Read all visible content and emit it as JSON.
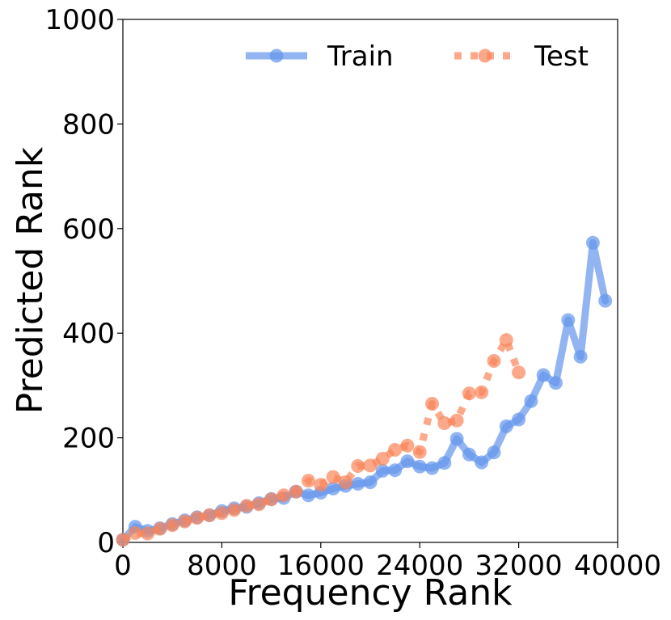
{
  "chart_data": {
    "type": "line",
    "title": "",
    "xlabel": "Frequency Rank",
    "ylabel": "Predicted Rank",
    "xlim": [
      0,
      40000
    ],
    "ylim": [
      0,
      1000
    ],
    "xticks": [
      0,
      8000,
      16000,
      24000,
      32000,
      40000
    ],
    "yticks": [
      0,
      200,
      400,
      600,
      800,
      1000
    ],
    "xtick_labels": [
      "0",
      "8000",
      "16000",
      "24000",
      "32000",
      "40000"
    ],
    "ytick_labels": [
      "0",
      "200",
      "400",
      "600",
      "800",
      "1000"
    ],
    "grid": false,
    "legend_position": "top-right",
    "series": [
      {
        "name": "Train",
        "color": "#6495ED",
        "line_style": "solid",
        "marker": "circle",
        "x": [
          0,
          1000,
          2000,
          3000,
          4000,
          5000,
          6000,
          7000,
          8000,
          9000,
          10000,
          11000,
          12000,
          13000,
          14000,
          15000,
          16000,
          17000,
          18000,
          19000,
          20000,
          21000,
          22000,
          23000,
          24000,
          25000,
          26000,
          27000,
          28000,
          29000,
          30000,
          31000,
          32000,
          33000,
          34000,
          35000,
          36000,
          37000,
          38000,
          39000
        ],
        "y": [
          5,
          30,
          22,
          27,
          35,
          42,
          48,
          52,
          60,
          65,
          68,
          75,
          83,
          85,
          97,
          90,
          95,
          103,
          108,
          112,
          115,
          137,
          138,
          155,
          145,
          142,
          152,
          198,
          168,
          153,
          172,
          222,
          235,
          270,
          320,
          305,
          425,
          355,
          573,
          462
        ]
      },
      {
        "name": "Test",
        "color": "#FA8559",
        "line_style": "dotted",
        "marker": "circle",
        "x": [
          0,
          1000,
          2000,
          3000,
          4000,
          5000,
          6000,
          7000,
          8000,
          9000,
          10000,
          11000,
          12000,
          13000,
          14000,
          15000,
          16000,
          17000,
          18000,
          19000,
          20000,
          21000,
          22000,
          23000,
          24000,
          25000,
          26000,
          27000,
          28000,
          29000,
          30000,
          31000,
          32000
        ],
        "y": [
          5,
          18,
          17,
          26,
          33,
          40,
          47,
          52,
          56,
          62,
          70,
          73,
          82,
          90,
          97,
          118,
          110,
          125,
          115,
          146,
          147,
          160,
          177,
          185,
          173,
          265,
          228,
          233,
          285,
          287,
          347,
          387,
          325
        ]
      }
    ]
  }
}
